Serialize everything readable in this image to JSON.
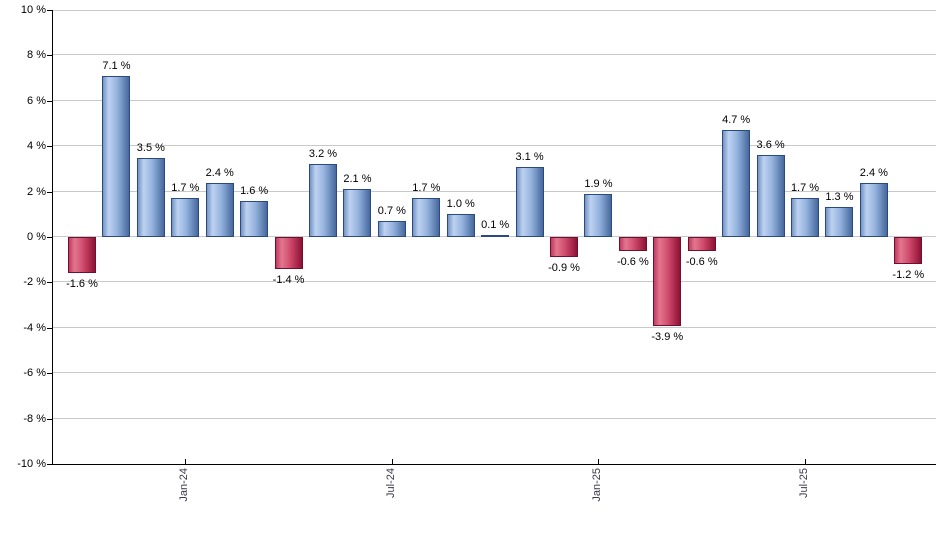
{
  "chart_data": {
    "type": "bar",
    "title": "",
    "unit": "%",
    "values": [
      -1.6,
      7.1,
      3.5,
      1.7,
      2.4,
      1.6,
      -1.4,
      3.2,
      2.1,
      0.7,
      1.7,
      1.0,
      0.1,
      3.1,
      -0.9,
      1.9,
      -0.6,
      -3.9,
      -0.6,
      4.7,
      3.6,
      1.7,
      1.3,
      2.4,
      -1.2
    ],
    "bar_labels": [
      "-1.6 %",
      "7.1 %",
      "3.5 %",
      "1.7 %",
      "2.4 %",
      "1.6 %",
      "-1.4 %",
      "3.2 %",
      "2.1 %",
      "0.7 %",
      "1.7 %",
      "1.0 %",
      "0.1 %",
      "3.1 %",
      "-0.9 %",
      "1.9 %",
      "-0.6 %",
      "-3.9 %",
      "-0.6 %",
      "4.7 %",
      "3.6 %",
      "1.7 %",
      "1.3 %",
      "2.4 %",
      "-1.2 %"
    ],
    "x_axis": {
      "tick_labels": [
        {
          "label": "Jan-24",
          "bar_index": 3
        },
        {
          "label": "Jul-24",
          "bar_index": 9
        },
        {
          "label": "Jan-25",
          "bar_index": 15
        },
        {
          "label": "Jul-25",
          "bar_index": 21
        }
      ]
    },
    "y_axis": {
      "tick_labels": [
        "10 %",
        "8 %",
        "6 %",
        "4 %",
        "2 %",
        "0 %",
        "-2 %",
        "-4 %",
        "-6 %",
        "-8 %",
        "-10 %"
      ],
      "min": -10,
      "max": 10,
      "step": 2
    },
    "grid": true,
    "legend": false,
    "colors": {
      "positive_bar_gradient": [
        "#7494c6",
        "#bed2f0",
        "#94b2de",
        "#46689c"
      ],
      "negative_bar_gradient": [
        "#c23b60",
        "#e2778f",
        "#cf4a6c",
        "#8e1134"
      ],
      "positive_bar_border": "#2a4a80",
      "negative_bar_border": "#701030",
      "gridline": "#c9c9c9",
      "axis": "#000000",
      "value_label_text": "#000000",
      "x_tick_text": "#3a3a4e"
    }
  }
}
